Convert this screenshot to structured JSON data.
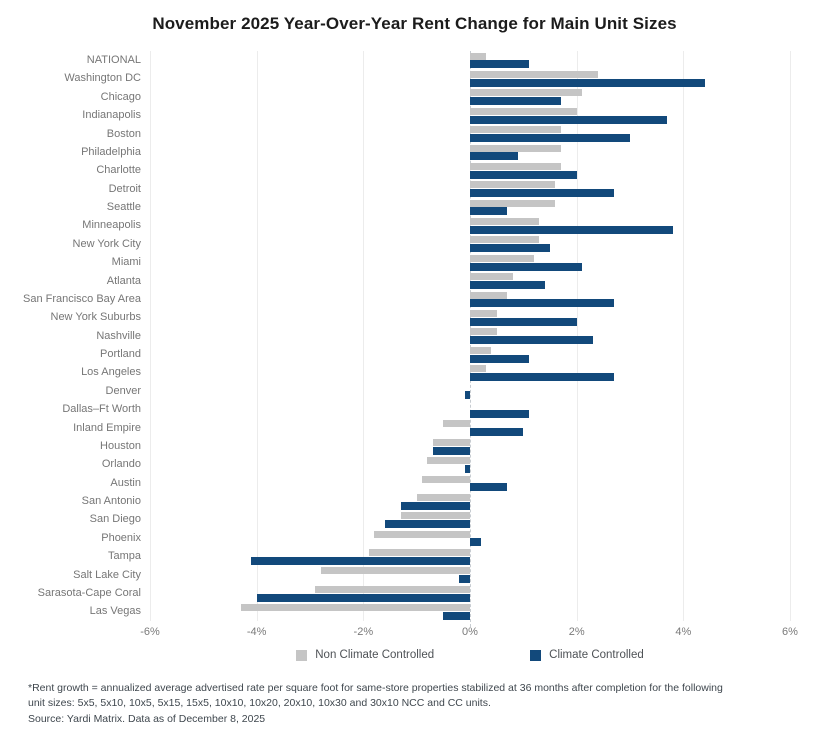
{
  "chart_data": {
    "type": "bar",
    "orientation": "horizontal",
    "title": "November 2025 Year-Over-Year Rent Change for Main Unit Sizes",
    "categories": [
      "NATIONAL",
      "Washington DC",
      "Chicago",
      "Indianapolis",
      "Boston",
      "Philadelphia",
      "Charlotte",
      "Detroit",
      "Seattle",
      "Minneapolis",
      "New York City",
      "Miami",
      "Atlanta",
      "San Francisco Bay Area",
      "New York Suburbs",
      "Nashville",
      "Portland",
      "Los Angeles",
      "Denver",
      "Dallas–Ft Worth",
      "Inland Empire",
      "Houston",
      "Orlando",
      "Austin",
      "San Antonio",
      "San Diego",
      "Phoenix",
      "Tampa",
      "Salt Lake City",
      "Sarasota-Cape Coral",
      "Las Vegas"
    ],
    "series": [
      {
        "name": "Non Climate Controlled",
        "color": "#c5c5c5",
        "values": [
          0.3,
          2.4,
          2.1,
          2.0,
          1.7,
          1.7,
          1.7,
          1.6,
          1.6,
          1.3,
          1.3,
          1.2,
          0.8,
          0.7,
          0.5,
          0.5,
          0.4,
          0.3,
          0.0,
          0.0,
          -0.5,
          -0.7,
          -0.8,
          -0.9,
          -1.0,
          -1.3,
          -1.8,
          -1.9,
          -2.8,
          -2.9,
          -4.3
        ]
      },
      {
        "name": "Climate Controlled",
        "color": "#12497b",
        "values": [
          1.1,
          4.4,
          1.7,
          3.7,
          3.0,
          0.9,
          2.0,
          2.7,
          0.7,
          3.8,
          1.5,
          2.1,
          1.4,
          2.7,
          2.0,
          2.3,
          1.1,
          2.7,
          -0.1,
          1.1,
          1.0,
          -0.7,
          -0.1,
          0.7,
          -1.3,
          -1.6,
          0.2,
          -4.1,
          -0.2,
          -4.0,
          -0.5
        ]
      }
    ],
    "xlabel": "",
    "ylabel": "",
    "xlim": [
      -6,
      6
    ],
    "tick_values": [
      -6,
      -4,
      -2,
      0,
      2,
      4,
      6
    ],
    "tick_labels": [
      "-6%",
      "-4%",
      "-2%",
      "0%",
      "2%",
      "4%",
      "6%"
    ],
    "grid": true,
    "zero_line_style": "dashed",
    "legend_position": "bottom"
  },
  "footnote": {
    "note": "*Rent growth = annualized average advertised rate per square foot for same-store properties stabilized at 36 months after completion for the following unit sizes: 5x5, 5x10, 10x5, 5x15, 15x5, 10x10, 10x20, 20x10, 10x30 and 30x10 NCC and CC units.",
    "source": "Source: Yardi Matrix. Data as of December 8, 2025"
  },
  "colors": {
    "bar_gray": "#c5c5c5",
    "bar_blue": "#12497b",
    "gridline": "#ececec",
    "zero_line": "#c7ccd1",
    "category_text": "#767676",
    "title_text": "#1c1c1c",
    "footnote_text": "#3f474e"
  }
}
